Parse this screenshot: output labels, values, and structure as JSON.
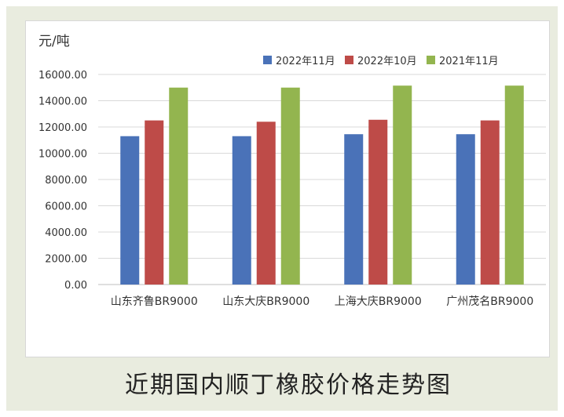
{
  "caption": "近期国内顺丁橡胶价格走势图",
  "colors": {
    "s0": "#4a72b8",
    "s1": "#be4b48",
    "s2": "#93b54f"
  },
  "chart_data": {
    "type": "bar",
    "unit_label": "元/吨",
    "categories": [
      "山东齐鲁BR9000",
      "山东大庆BR9000",
      "上海大庆BR9000",
      "广州茂名BR9000"
    ],
    "series": [
      {
        "name": "2022年11月",
        "values": [
          11300,
          11300,
          11450,
          11450
        ]
      },
      {
        "name": "2022年10月",
        "values": [
          12500,
          12400,
          12550,
          12500
        ]
      },
      {
        "name": "2021年11月",
        "values": [
          15000,
          15000,
          15150,
          15150
        ]
      }
    ],
    "ylim": [
      0,
      16000
    ],
    "yticks": [
      "0.00",
      "2000.00",
      "4000.00",
      "6000.00",
      "8000.00",
      "10000.00",
      "12000.00",
      "14000.00",
      "16000.00"
    ],
    "grid": true,
    "legend": "top-right"
  }
}
